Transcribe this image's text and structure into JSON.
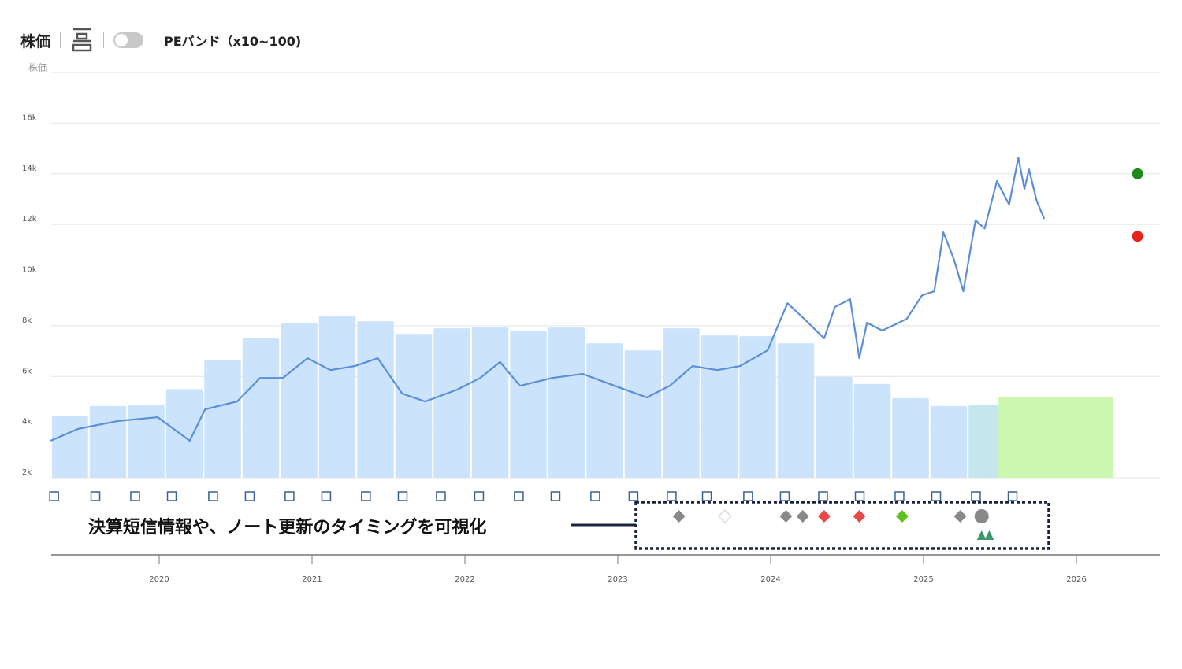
{
  "toolbar": {
    "title": "株価",
    "toggle_label": "PEバンド（x10~100)",
    "toggle_on": false
  },
  "annotation": "決算短信情報や、ノート更新のタイミングを可視化",
  "chart_data": {
    "type": "bar+line",
    "ylabel": "株価",
    "ylim": [
      2,
      18
    ],
    "yticks": [
      {
        "v": 2,
        "label": "2k"
      },
      {
        "v": 4,
        "label": "4k"
      },
      {
        "v": 6,
        "label": "6k"
      },
      {
        "v": 8,
        "label": "8k"
      },
      {
        "v": 10,
        "label": "10k"
      },
      {
        "v": 12,
        "label": "12k"
      },
      {
        "v": 14,
        "label": "14k"
      },
      {
        "v": 16,
        "label": "16k"
      }
    ],
    "xlim": [
      2019.29,
      2026.55
    ],
    "xticks": [
      {
        "v": 2020,
        "label": "2020"
      },
      {
        "v": 2021,
        "label": "2021"
      },
      {
        "v": 2022,
        "label": "2022"
      },
      {
        "v": 2023,
        "label": "2023"
      },
      {
        "v": 2024,
        "label": "2024"
      },
      {
        "v": 2025,
        "label": "2025"
      },
      {
        "v": 2026,
        "label": "2026"
      }
    ],
    "bars_start": 2019.29,
    "bar_width_years": 0.25,
    "bars": [
      4.45,
      4.83,
      4.89,
      5.5,
      6.66,
      7.5,
      8.12,
      8.4,
      8.18,
      7.68,
      7.9,
      7.96,
      7.78,
      7.93,
      7.31,
      7.03,
      7.9,
      7.62,
      7.59,
      7.31,
      5.98,
      5.7,
      5.14,
      4.83,
      4.89
    ],
    "forecast_bar": {
      "start": 2025.49,
      "end": 2026.24,
      "value": 5.17
    },
    "price": [
      [
        2019.29,
        3.46
      ],
      [
        2019.47,
        3.93
      ],
      [
        2019.73,
        4.24
      ],
      [
        2019.99,
        4.39
      ],
      [
        2020.2,
        3.46
      ],
      [
        2020.3,
        4.7
      ],
      [
        2020.51,
        5.01
      ],
      [
        2020.66,
        5.94
      ],
      [
        2020.81,
        5.94
      ],
      [
        2020.97,
        6.72
      ],
      [
        2021.12,
        6.25
      ],
      [
        2021.28,
        6.41
      ],
      [
        2021.43,
        6.72
      ],
      [
        2021.59,
        5.32
      ],
      [
        2021.74,
        5.01
      ],
      [
        2021.95,
        5.48
      ],
      [
        2022.1,
        5.94
      ],
      [
        2022.23,
        6.57
      ],
      [
        2022.36,
        5.63
      ],
      [
        2022.57,
        5.94
      ],
      [
        2022.77,
        6.1
      ],
      [
        2022.98,
        5.63
      ],
      [
        2023.19,
        5.17
      ],
      [
        2023.34,
        5.63
      ],
      [
        2023.49,
        6.41
      ],
      [
        2023.65,
        6.25
      ],
      [
        2023.8,
        6.41
      ],
      [
        2023.98,
        7.03
      ],
      [
        2024.11,
        8.89
      ],
      [
        2024.22,
        8.27
      ],
      [
        2024.35,
        7.5
      ],
      [
        2024.42,
        8.74
      ],
      [
        2024.52,
        9.05
      ],
      [
        2024.58,
        6.72
      ],
      [
        2024.63,
        8.12
      ],
      [
        2024.73,
        7.81
      ],
      [
        2024.89,
        8.27
      ],
      [
        2024.99,
        9.2
      ],
      [
        2025.07,
        9.36
      ],
      [
        2025.13,
        11.69
      ],
      [
        2025.2,
        10.6
      ],
      [
        2025.26,
        9.36
      ],
      [
        2025.34,
        12.16
      ],
      [
        2025.4,
        11.84
      ],
      [
        2025.48,
        13.71
      ],
      [
        2025.56,
        12.78
      ],
      [
        2025.62,
        14.64
      ],
      [
        2025.66,
        13.4
      ],
      [
        2025.69,
        14.17
      ],
      [
        2025.74,
        12.93
      ],
      [
        2025.79,
        12.22
      ]
    ],
    "targets": [
      {
        "x": 2026.4,
        "y": 14.0,
        "color": "#1e8a1e"
      },
      {
        "x": 2026.4,
        "y": 11.53,
        "color": "#e8231b"
      }
    ],
    "report_markers": [
      2019.31,
      2019.58,
      2019.84,
      2020.08,
      2020.35,
      2020.59,
      2020.85,
      2021.09,
      2021.35,
      2021.59,
      2021.84,
      2022.09,
      2022.35,
      2022.59,
      2022.85,
      2023.1,
      2023.35,
      2023.58,
      2023.85,
      2024.09,
      2024.34,
      2024.58,
      2024.84,
      2025.08,
      2025.34,
      2025.58
    ],
    "events": [
      {
        "x": 2023.4,
        "shape": "diamond",
        "color": "#888888"
      },
      {
        "x": 2023.7,
        "shape": "diamond-open",
        "color": "#dddddd"
      },
      {
        "x": 2024.1,
        "shape": "diamond",
        "color": "#888888"
      },
      {
        "x": 2024.21,
        "shape": "diamond",
        "color": "#888888"
      },
      {
        "x": 2024.35,
        "shape": "diamond",
        "color": "#e84848"
      },
      {
        "x": 2024.58,
        "shape": "diamond",
        "color": "#e84848"
      },
      {
        "x": 2024.86,
        "shape": "diamond",
        "color": "#5cc01a"
      },
      {
        "x": 2025.24,
        "shape": "diamond",
        "color": "#888888"
      },
      {
        "x": 2025.38,
        "shape": "circle",
        "color": "#888888"
      },
      {
        "x": 2025.38,
        "shape": "triangle",
        "color": "#3a9a6a"
      },
      {
        "x": 2025.43,
        "shape": "triangle",
        "color": "#3a9a6a"
      }
    ],
    "colors": {
      "bar": "#cce4fb",
      "forecast": "#ccf7b0",
      "overlap": "#c4e6ec",
      "line": "#5b8fd9",
      "grid": "#e4e4e4",
      "square": "#3a5f9a"
    }
  }
}
